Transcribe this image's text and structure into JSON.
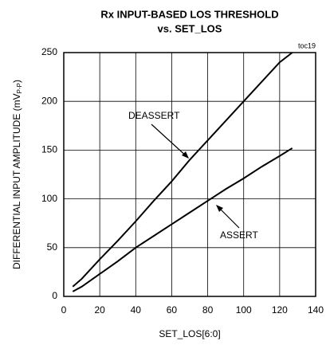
{
  "chart_data": {
    "type": "line",
    "title": "Rx INPUT-BASED LOS THRESHOLD",
    "subtitle": "vs. SET_LOS",
    "annotation": "toc19",
    "xlabel": "SET_LOS[6:0]",
    "ylabel": {
      "text": "DIFFERENTIAL INPUT AMPLITUDE (mV",
      "sub": "P-P",
      "tail": ")"
    },
    "x": [
      5,
      10,
      20,
      30,
      40,
      50,
      60,
      70,
      80,
      90,
      100,
      110,
      120,
      127
    ],
    "series": [
      {
        "name": "DEASSERT",
        "color": "#000000",
        "values": [
          10,
          18,
          38,
          57,
          77,
          98,
          118,
          140,
          160,
          180,
          200,
          220,
          240,
          250
        ]
      },
      {
        "name": "ASSERT",
        "color": "#000000",
        "values": [
          5,
          10,
          23,
          36,
          50,
          62,
          74,
          86,
          98,
          110,
          121,
          133,
          144,
          152
        ]
      }
    ],
    "xlim": [
      0,
      140
    ],
    "xticks": [
      0,
      20,
      40,
      60,
      80,
      100,
      120,
      140
    ],
    "ylim": [
      0,
      250
    ],
    "yticks": [
      0,
      50,
      100,
      150,
      200,
      250
    ],
    "grid": true
  }
}
